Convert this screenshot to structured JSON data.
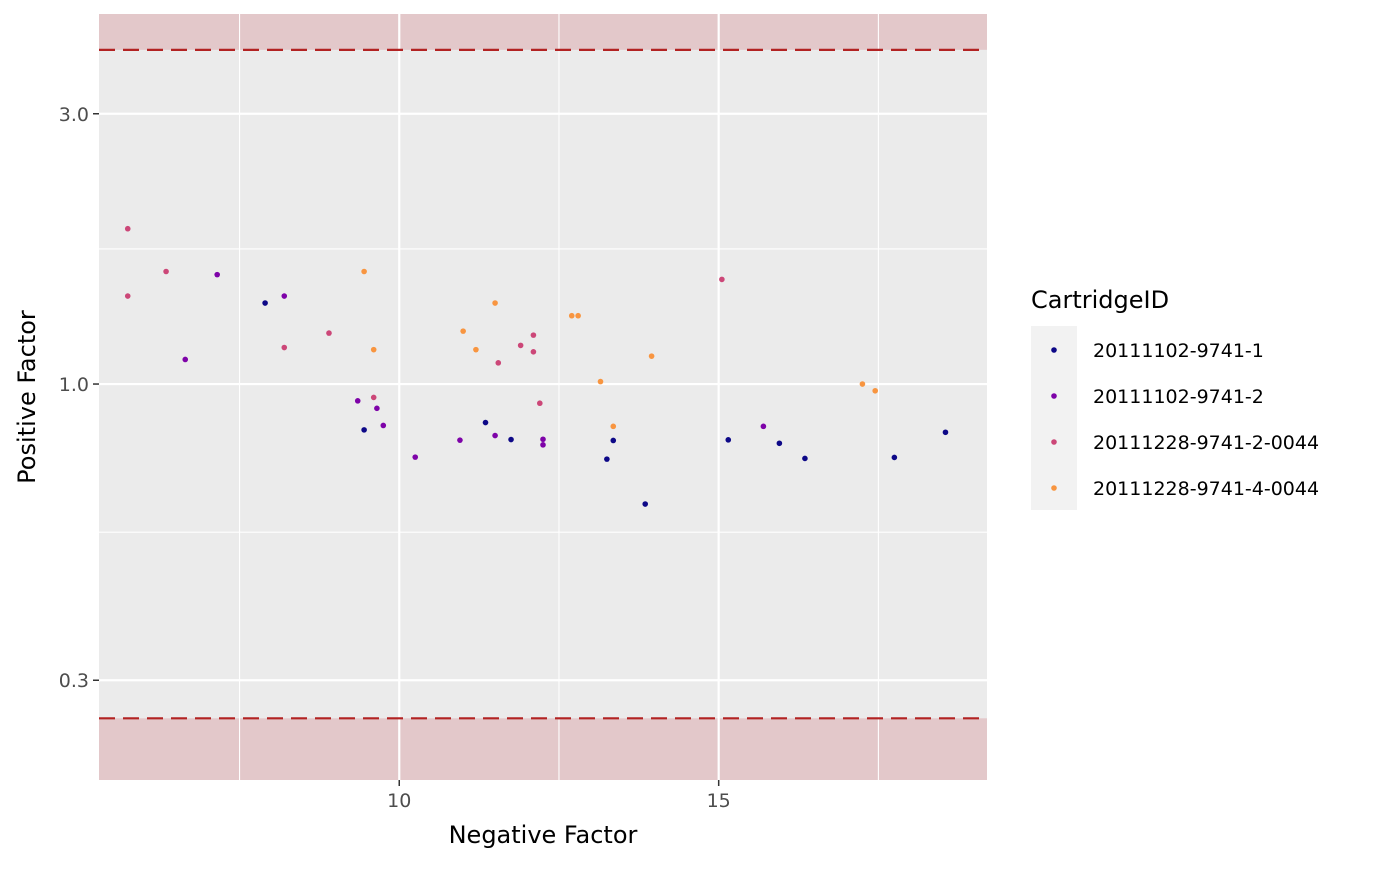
{
  "chart_data": {
    "type": "scatter",
    "xlabel": "Negative Factor",
    "ylabel": "Positive Factor",
    "xlim": [
      5.3,
      19.2
    ],
    "ylim": [
      0.2,
      4.5
    ],
    "y_scale": "log10",
    "x_ticks": [
      10,
      15
    ],
    "y_ticks": [
      0.3,
      1.0,
      3.0
    ],
    "y_tick_labels": [
      "0.3",
      "1.0",
      "3.0"
    ],
    "reference_lines": [
      3.89,
      0.257
    ],
    "shaded_regions": [
      [
        3.89,
        4.5
      ],
      [
        0.2,
        0.257
      ]
    ],
    "grid": true,
    "legend": {
      "title": "CartridgeID",
      "position": "right"
    },
    "colors": {
      "panel_background": "#ebebeb",
      "grid": "#ffffff",
      "reference_line": "#b22222",
      "shade": "#e2c2c4"
    },
    "series": [
      {
        "name": "20111102-9741-1",
        "color": "#0d0887",
        "points": [
          {
            "x": 7.9,
            "y": 1.39
          },
          {
            "x": 9.45,
            "y": 0.83
          },
          {
            "x": 11.35,
            "y": 0.855
          },
          {
            "x": 11.75,
            "y": 0.798
          },
          {
            "x": 13.25,
            "y": 0.737
          },
          {
            "x": 13.35,
            "y": 0.795
          },
          {
            "x": 13.85,
            "y": 0.614
          },
          {
            "x": 15.15,
            "y": 0.797
          },
          {
            "x": 15.95,
            "y": 0.786
          },
          {
            "x": 16.35,
            "y": 0.739
          },
          {
            "x": 17.75,
            "y": 0.742
          },
          {
            "x": 18.55,
            "y": 0.822
          }
        ]
      },
      {
        "name": "20111102-9741-2",
        "color": "#7e03a8",
        "points": [
          {
            "x": 6.65,
            "y": 1.105
          },
          {
            "x": 7.15,
            "y": 1.56
          },
          {
            "x": 8.2,
            "y": 1.43
          },
          {
            "x": 9.35,
            "y": 0.934
          },
          {
            "x": 9.65,
            "y": 0.906
          },
          {
            "x": 9.75,
            "y": 0.845
          },
          {
            "x": 10.25,
            "y": 0.743
          },
          {
            "x": 10.95,
            "y": 0.796
          },
          {
            "x": 11.5,
            "y": 0.811
          },
          {
            "x": 12.25,
            "y": 0.781
          },
          {
            "x": 12.25,
            "y": 0.799
          },
          {
            "x": 15.7,
            "y": 0.842
          }
        ]
      },
      {
        "name": "20111228-9741-2-0044",
        "color": "#cc4778",
        "points": [
          {
            "x": 5.75,
            "y": 1.88
          },
          {
            "x": 5.75,
            "y": 1.43
          },
          {
            "x": 6.35,
            "y": 1.58
          },
          {
            "x": 8.2,
            "y": 1.16
          },
          {
            "x": 8.9,
            "y": 1.23
          },
          {
            "x": 9.6,
            "y": 0.947
          },
          {
            "x": 11.55,
            "y": 1.09
          },
          {
            "x": 11.9,
            "y": 1.17
          },
          {
            "x": 12.1,
            "y": 1.22
          },
          {
            "x": 12.1,
            "y": 1.14
          },
          {
            "x": 12.2,
            "y": 0.925
          },
          {
            "x": 15.05,
            "y": 1.53
          }
        ]
      },
      {
        "name": "20111228-9741-4-0044",
        "color": "#f89540",
        "points": [
          {
            "x": 9.45,
            "y": 1.58
          },
          {
            "x": 9.6,
            "y": 1.15
          },
          {
            "x": 11.0,
            "y": 1.24
          },
          {
            "x": 11.2,
            "y": 1.15
          },
          {
            "x": 11.5,
            "y": 1.39
          },
          {
            "x": 12.7,
            "y": 1.32
          },
          {
            "x": 12.8,
            "y": 1.32
          },
          {
            "x": 13.15,
            "y": 1.01
          },
          {
            "x": 13.35,
            "y": 0.842
          },
          {
            "x": 13.95,
            "y": 1.12
          },
          {
            "x": 17.25,
            "y": 1.0
          },
          {
            "x": 17.45,
            "y": 0.973
          }
        ]
      }
    ]
  }
}
